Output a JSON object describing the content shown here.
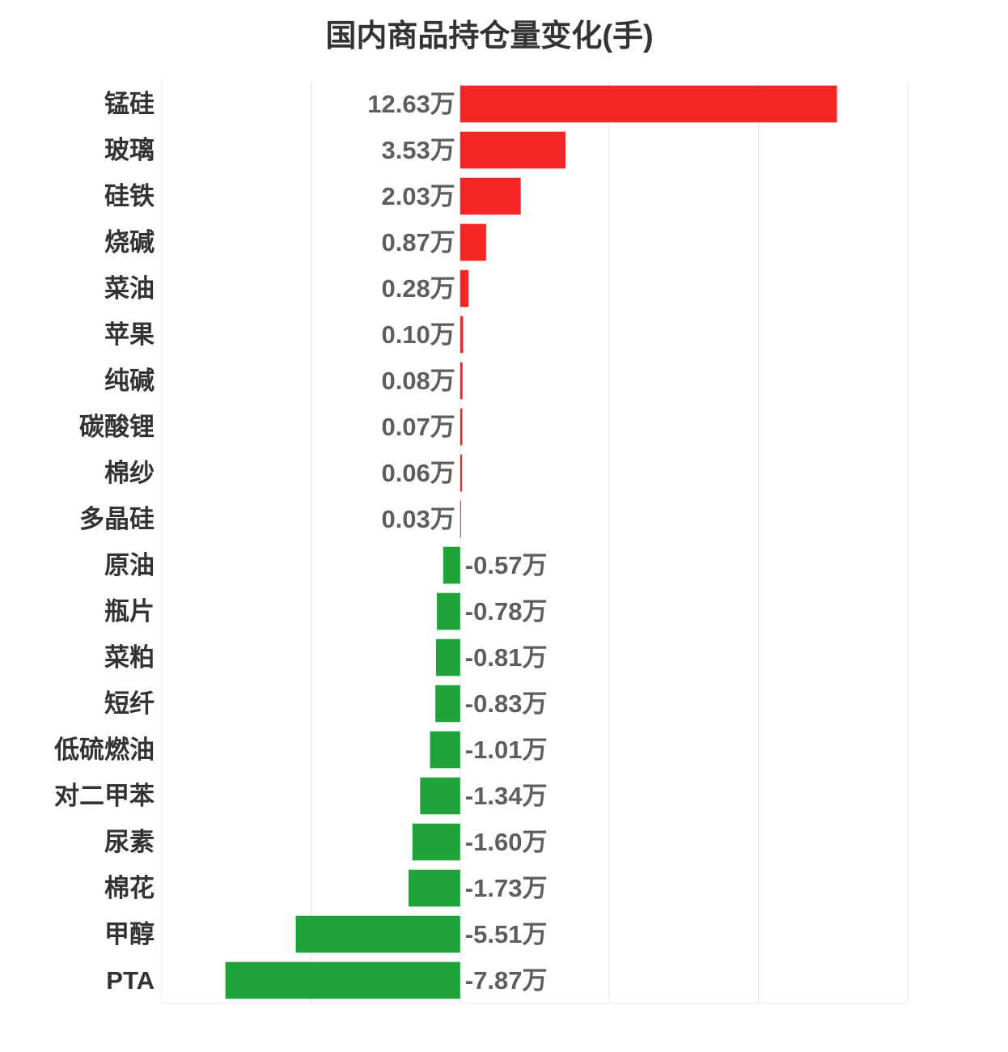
{
  "chart_data": {
    "type": "bar",
    "orientation": "horizontal",
    "title": "国内商品持仓量变化(手)",
    "xlabel": "",
    "ylabel": "",
    "categories": [
      "锰硅",
      "玻璃",
      "硅铁",
      "烧碱",
      "菜油",
      "苹果",
      "纯碱",
      "碳酸锂",
      "棉纱",
      "多晶硅",
      "原油",
      "瓶片",
      "菜粕",
      "短纤",
      "低硫燃油",
      "对二甲苯",
      "尿素",
      "棉花",
      "甲醇",
      "PTA"
    ],
    "values": [
      12.63,
      3.53,
      2.03,
      0.87,
      0.28,
      0.1,
      0.08,
      0.07,
      0.06,
      0.03,
      -0.57,
      -0.78,
      -0.81,
      -0.83,
      -1.01,
      -1.34,
      -1.6,
      -1.73,
      -5.51,
      -7.87
    ],
    "data_labels": [
      "12.63万",
      "3.53万",
      "2.03万",
      "0.87万",
      "0.28万",
      "0.10万",
      "0.08万",
      "0.07万",
      "0.06万",
      "0.03万",
      "-0.57万",
      "-0.78万",
      "-0.81万",
      "-0.83万",
      "-1.01万",
      "-1.34万",
      "-1.60万",
      "-1.73万",
      "-5.51万",
      "-7.87万"
    ],
    "xlim": [
      -10,
      15
    ],
    "grid": true,
    "grid_step": 5,
    "legend": "none",
    "colors": {
      "positive": "#f52626",
      "negative": "#21a33b"
    }
  }
}
